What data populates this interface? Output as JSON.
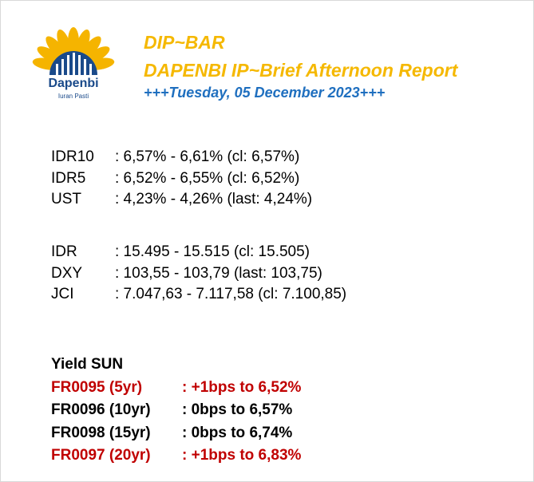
{
  "header": {
    "logo_name": "Dapenbi",
    "logo_tagline": "Iuran Pasti",
    "title": "DIP~BAR",
    "subtitle": "DAPENBI IP~Brief Afternoon Report",
    "date": "+++Tuesday, 05 December 2023+++"
  },
  "markets_group1": [
    {
      "label": "IDR10",
      "value": ": 6,57% - 6,61% (cl: 6,57%)"
    },
    {
      "label": "IDR5",
      "value": ": 6,52% - 6,55% (cl: 6,52%)"
    },
    {
      "label": "UST",
      "value": ": 4,23% - 4,26% (last: 4,24%)"
    }
  ],
  "markets_group2": [
    {
      "label": "IDR",
      "value": ": 15.495 - 15.515 (cl: 15.505)"
    },
    {
      "label": "DXY",
      "value": ": 103,55 - 103,79 (last: 103,75)"
    },
    {
      "label": "JCI",
      "value": ": 7.047,63 - 7.117,58 (cl: 7.100,85)"
    }
  ],
  "yield": {
    "heading": "Yield SUN",
    "bonds": [
      {
        "name": "FR0095 (5yr)",
        "change": ": +1bps to 6,52%",
        "color": "#c00000"
      },
      {
        "name": "FR0096 (10yr)",
        "change": ": 0bps to 6,57%",
        "color": "#000000"
      },
      {
        "name": "FR0098 (15yr)",
        "change": ": 0bps to 6,74%",
        "color": "#000000"
      },
      {
        "name": "FR0097 (20yr)",
        "change": ": +1bps to 6,83%",
        "color": "#c00000"
      }
    ]
  }
}
